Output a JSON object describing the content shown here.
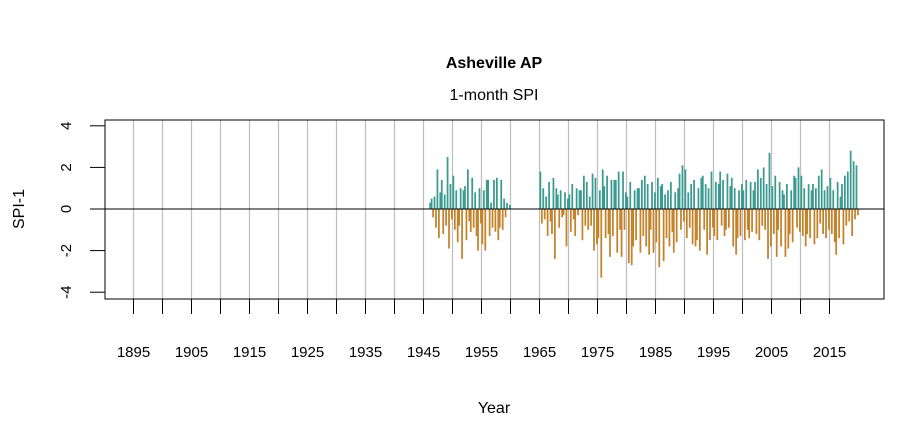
{
  "chart_data": {
    "type": "bar",
    "title": "Asheville AP",
    "subtitle": "1-month SPI",
    "xlabel": "Year",
    "ylabel": "SPI-1",
    "xlim": [
      1890,
      2024.5
    ],
    "ylim": [
      -4.4,
      4.3
    ],
    "x_ticks": [
      1895,
      1900,
      1905,
      1910,
      1915,
      1920,
      1925,
      1930,
      1935,
      1940,
      1945,
      1950,
      1955,
      1960,
      1965,
      1970,
      1975,
      1980,
      1985,
      1990,
      1995,
      2000,
      2005,
      2010,
      2015
    ],
    "x_tick_labels": [
      "1895",
      "1905",
      "1915",
      "1925",
      "1935",
      "1945",
      "1955",
      "1965",
      "1975",
      "1985",
      "1995",
      "2005",
      "2015"
    ],
    "y_ticks": [
      4,
      2,
      0,
      -2,
      -4
    ],
    "y_tick_labels": [
      "4",
      "2",
      "0",
      "-2",
      "-4"
    ],
    "grid": "vertical lines every 5 years",
    "colors": {
      "positive": "#3a9a8f",
      "negative": "#c4822a",
      "grid": "#bebebe"
    },
    "values_per_year": 4,
    "segments": [
      {
        "start_year": 1946,
        "values": [
          0.3,
          0.5,
          -0.4,
          0.6,
          -0.9,
          1.9,
          -1.4,
          0.8,
          1.4,
          -1.2,
          0.7,
          -0.8,
          2.5,
          -1.9,
          1.2,
          -0.5,
          1.6,
          -1.0,
          0.9,
          -1.6,
          -0.8,
          1.0,
          -2.4,
          0.9,
          1.1,
          -1.5,
          1.9,
          -0.6,
          -1.1,
          1.5,
          -0.9,
          0.8,
          -1.3,
          -2.0,
          1.0,
          -0.7,
          -1.7,
          0.9,
          -2.0,
          1.4,
          1.4,
          -1.3,
          0.3,
          -0.9,
          1.4,
          -1.1,
          1.5,
          -1.5,
          -0.9,
          1.4,
          -1.0,
          0.5,
          -0.4,
          0.3,
          0.0,
          0.2
        ]
      },
      {
        "start_year": 1965,
        "values": [
          1.8,
          -0.7,
          1.0,
          -0.5,
          0.6,
          -1.3,
          1.3,
          -0.6,
          -1.2,
          1.5,
          -2.4,
          1.0,
          0.7,
          -0.9,
          0.9,
          -0.4,
          -0.3,
          0.8,
          -1.8,
          0.5,
          0.7,
          -1.1,
          1.2,
          -0.5,
          -1.3,
          1.0,
          -0.3,
          0.9,
          0.9,
          -1.5,
          1.6,
          -0.8,
          1.3,
          -1.0,
          0.6,
          -0.8,
          1.7,
          -2.0,
          1.5,
          -1.7,
          -1.4,
          0.9,
          -3.3,
          1.9,
          1.1,
          -1.4,
          1.6,
          -1.2,
          -2.3,
          1.4,
          -1.3,
          1.4,
          1.4,
          -2.1,
          1.8,
          -1.0,
          -2.3,
          1.8,
          -1.0,
          0.8,
          0.6,
          -2.6,
          1.3,
          -2.7,
          -1.8,
          0.9,
          -1.5,
          1.0,
          1.0,
          -2.1,
          1.4,
          -1.3,
          1.6,
          -1.8,
          1.2,
          -2.2,
          -1.0,
          1.3,
          -2.1,
          0.8,
          -1.6,
          1.5,
          -2.8,
          1.1,
          1.2,
          -2.5,
          0.7,
          -1.4,
          0.9,
          -1.8,
          1.3,
          -1.1,
          -2.1,
          0.8,
          -1.6,
          1.0,
          1.7,
          -1.0,
          2.1,
          -0.6,
          1.9,
          -1.4,
          0.8,
          -0.9,
          1.2,
          -1.7,
          1.4,
          -1.8,
          -1.5,
          1.0,
          -2.0,
          1.5,
          1.6,
          -1.0,
          1.2,
          -2.2,
          1.0,
          -1.5,
          1.8,
          -0.9,
          -1.3,
          1.3,
          -1.5,
          1.2,
          1.8,
          -0.8,
          1.4,
          -1.3,
          -1.0,
          1.7,
          -0.9,
          1.1,
          1.5,
          -1.8,
          1.0,
          -2.2,
          -1.4,
          0.9,
          -1.3,
          1.2,
          0.9,
          -1.5,
          1.4,
          -1.0,
          -1.4,
          1.3,
          -1.1,
          0.9,
          1.3,
          -1.2,
          1.9,
          -1.5,
          1.5,
          -0.8,
          2.0,
          -1.0,
          1.2,
          -2.4,
          2.7,
          -1.8,
          1.1,
          -1.2,
          1.6,
          -2.3,
          -1.0,
          1.3,
          -1.8,
          0.9,
          0.7,
          -2.3,
          1.2,
          -1.9,
          -1.2,
          0.9,
          -1.6,
          1.6,
          1.5,
          -0.9,
          2.0,
          -1.1,
          1.6,
          -1.3,
          1.0,
          -1.8,
          -1.2,
          1.2,
          -1.4,
          0.9,
          1.2,
          -1.7,
          1.0,
          -1.4,
          1.6,
          -0.7,
          1.9,
          -1.2,
          0.9,
          -1.4,
          1.1,
          -1.0,
          1.5,
          -1.2,
          0.9,
          -1.6,
          -2.2,
          1.3,
          -1.4,
          0.6,
          1.2,
          -1.7,
          1.6,
          -0.8,
          1.8,
          -0.6,
          2.8,
          -1.3,
          2.3,
          -0.5,
          2.1,
          -0.3
        ]
      }
    ]
  }
}
